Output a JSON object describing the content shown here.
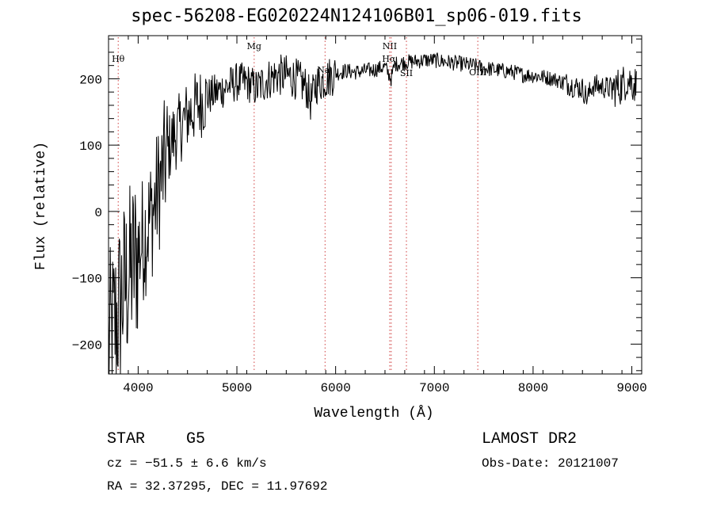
{
  "chart_data": {
    "type": "line",
    "title": "spec-56208-EG020224N124106B01_sp06-019.fits",
    "xlabel": "Wavelength (Å)",
    "ylabel": "Flux (relative)",
    "xlim": [
      3700,
      9100
    ],
    "ylim": [
      -245,
      265
    ],
    "x_ticks": [
      4000,
      5000,
      6000,
      7000,
      8000,
      9000
    ],
    "y_ticks": [
      -200,
      -100,
      0,
      100,
      200
    ],
    "grid": false,
    "series": [
      {
        "x": [
          3700,
          3750,
          3800,
          3850,
          3900,
          3950,
          4000,
          4050,
          4100,
          4150,
          4200,
          4250,
          4300,
          4350,
          4400,
          4500,
          4600,
          4700,
          4800,
          4900,
          5000,
          5100,
          5200,
          5300,
          5400,
          5500,
          5600,
          5700,
          5750,
          5800,
          5900,
          6000,
          6100,
          6200,
          6300,
          6400,
          6500,
          6562,
          6600,
          6700,
          6800,
          6900,
          7000,
          7100,
          7200,
          7300,
          7400,
          7500,
          7600,
          7700,
          7800,
          7900,
          8000,
          8100,
          8200,
          8300,
          8400,
          8500,
          8550,
          8600,
          8700,
          8800,
          8900,
          8950,
          9000,
          9050
        ],
        "values": [
          -200,
          -180,
          -150,
          -120,
          -100,
          -80,
          -60,
          -40,
          -20,
          0,
          30,
          60,
          90,
          110,
          120,
          145,
          160,
          172,
          180,
          188,
          195,
          195,
          185,
          198,
          205,
          205,
          200,
          188,
          165,
          192,
          200,
          208,
          212,
          210,
          212,
          214,
          218,
          200,
          222,
          225,
          226,
          228,
          228,
          226,
          224,
          222,
          220,
          216,
          214,
          212,
          210,
          206,
          205,
          203,
          200,
          195,
          190,
          185,
          170,
          190,
          188,
          185,
          190,
          200,
          195,
          190
        ]
      }
    ],
    "lines": [
      {
        "label": "Hθ",
        "x": 3798
      },
      {
        "label": "Mg",
        "x": 5175
      },
      {
        "label": "Na",
        "x": 5893
      },
      {
        "label": "NII",
        "x": 6548
      },
      {
        "label": "Hα",
        "x": 6563
      },
      {
        "label": "SII",
        "x": 6717
      },
      {
        "label": "OIII",
        "x": 7440
      }
    ]
  },
  "footer": {
    "class_label": "STAR",
    "subclass": "G5",
    "redshift": "cz = −51.5 ± 6.6 km/s",
    "coords": "RA =  32.37295, DEC =  11.97692",
    "survey": "LAMOST DR2",
    "obs_date": "Obs-Date: 20121007"
  }
}
